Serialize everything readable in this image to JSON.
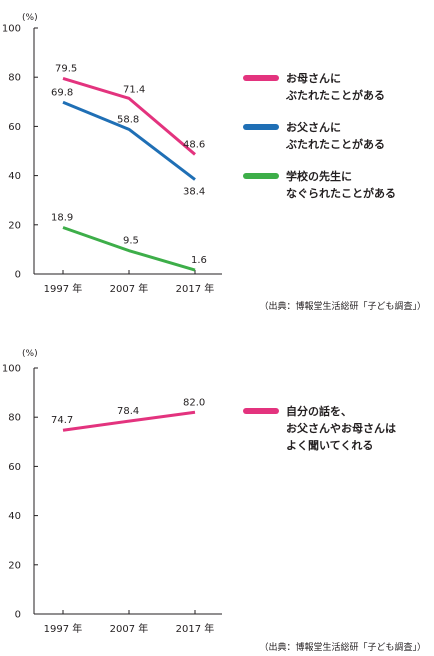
{
  "chart_data": [
    {
      "type": "line",
      "unit": "(%)",
      "categories": [
        "1997 年",
        "2007 年",
        "2017 年"
      ],
      "ylim": [
        0,
        100
      ],
      "yticks": [
        "0",
        "20",
        "40",
        "60",
        "80",
        "100"
      ],
      "series": [
        {
          "name_lines": [
            "お母さんに",
            "ぶたれたことがある"
          ],
          "color": "#e3337e",
          "values": [
            79.5,
            71.4,
            48.6
          ],
          "labels": [
            "79.5",
            "71.4",
            "48.6"
          ]
        },
        {
          "name_lines": [
            "お父さんに",
            "ぶたれたことがある"
          ],
          "color": "#1f6fb5",
          "values": [
            69.8,
            58.8,
            38.4
          ],
          "labels": [
            "69.8",
            "58.8",
            "38.4"
          ]
        },
        {
          "name_lines": [
            "学校の先生に",
            "なぐられたことがある"
          ],
          "color": "#3dae49",
          "values": [
            18.9,
            9.5,
            1.6
          ],
          "labels": [
            "18.9",
            "9.5",
            "1.6"
          ]
        }
      ],
      "source": "（出典：博報堂生活総研「子ども調査」）"
    },
    {
      "type": "line",
      "unit": "(%)",
      "categories": [
        "1997 年",
        "2007 年",
        "2017 年"
      ],
      "ylim": [
        0,
        100
      ],
      "yticks": [
        "0",
        "20",
        "40",
        "60",
        "80",
        "100"
      ],
      "series": [
        {
          "name_lines": [
            "自分の話を、",
            "お父さんやお母さんは",
            "よく聞いてくれる"
          ],
          "color": "#e3337e",
          "values": [
            74.7,
            78.4,
            82.0
          ],
          "labels": [
            "74.7",
            "78.4",
            "82.0"
          ]
        }
      ],
      "source": "（出典：博報堂生活総研「子ども調査」）"
    }
  ]
}
